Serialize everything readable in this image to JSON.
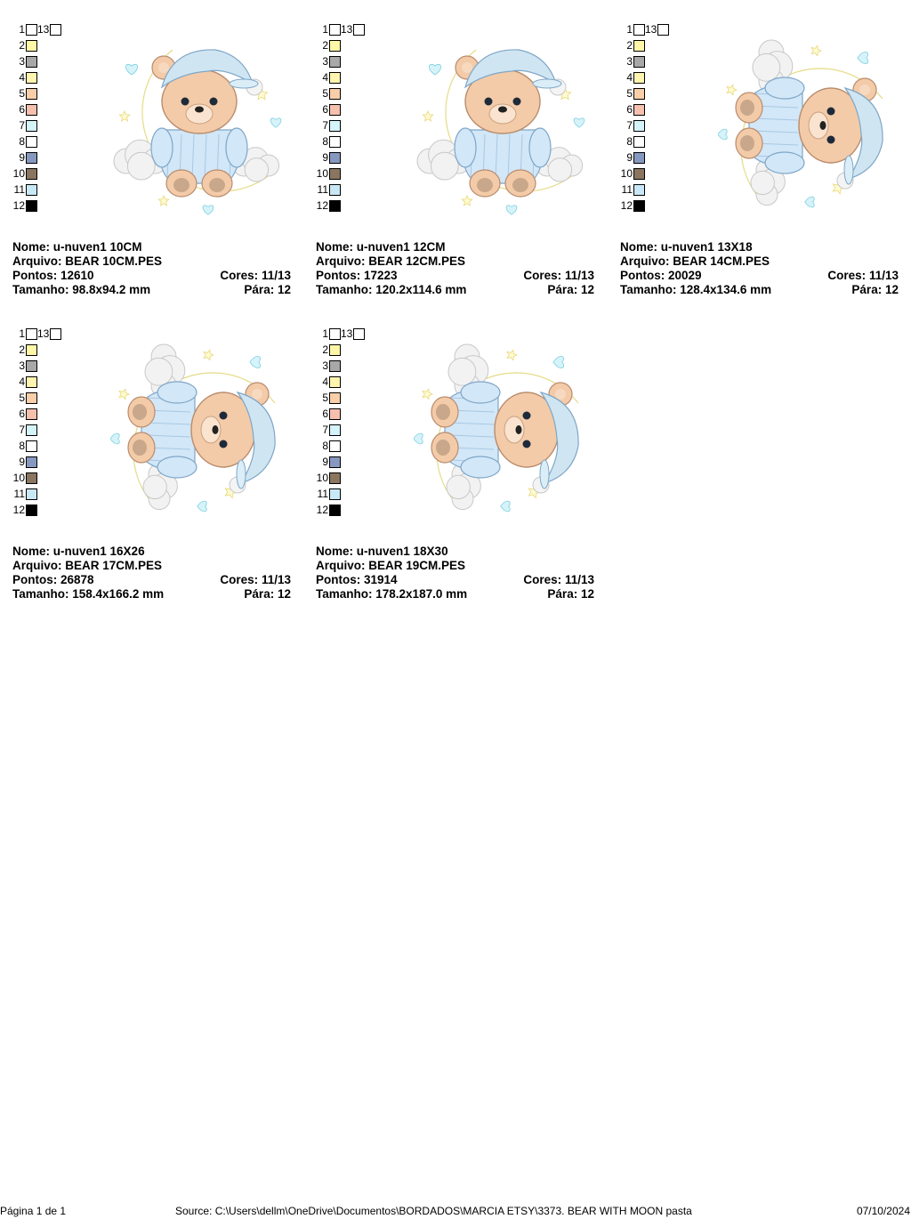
{
  "swatch_colors": [
    "#ffffff",
    "#fff7a8",
    "#a8a8a8",
    "#fff4b0",
    "#f9cfaa",
    "#f6c0ae",
    "#d4f4fa",
    "#ffffff",
    "#8798c0",
    "#8a7560",
    "#c8e8f6",
    "#000000",
    "#ffffff"
  ],
  "swatch_numbers": [
    "1",
    "2",
    "3",
    "4",
    "5",
    "6",
    "7",
    "8",
    "9",
    "10",
    "11",
    "12",
    "13"
  ],
  "designs": [
    {
      "nome_label": "Nome:",
      "nome": "u-nuven1 10CM",
      "arquivo_label": "Arquivo:",
      "arquivo": "BEAR 10CM.PES",
      "pontos_label": "Pontos:",
      "pontos": "12610",
      "cores_label": "Cores:",
      "cores": "11/13",
      "tamanho_label": "Tamanho:",
      "tamanho": "98.8x94.2 mm",
      "para_label": "Pára:",
      "para": "12"
    },
    {
      "nome_label": "Nome:",
      "nome": "u-nuven1 12CM",
      "arquivo_label": "Arquivo:",
      "arquivo": "BEAR 12CM.PES",
      "pontos_label": "Pontos:",
      "pontos": "17223",
      "cores_label": "Cores:",
      "cores": "11/13",
      "tamanho_label": "Tamanho:",
      "tamanho": "120.2x114.6 mm",
      "para_label": "Pára:",
      "para": "12"
    },
    {
      "nome_label": "Nome:",
      "nome": "u-nuven1 13X18",
      "arquivo_label": "Arquivo:",
      "arquivo": "BEAR 14CM.PES",
      "pontos_label": "Pontos:",
      "pontos": "20029",
      "cores_label": "Cores:",
      "cores": "11/13",
      "tamanho_label": "Tamanho:",
      "tamanho": "128.4x134.6 mm",
      "para_label": "Pára:",
      "para": "12"
    },
    {
      "nome_label": "Nome:",
      "nome": "u-nuven1 16X26",
      "arquivo_label": "Arquivo:",
      "arquivo": "BEAR 17CM.PES",
      "pontos_label": "Pontos:",
      "pontos": "26878",
      "cores_label": "Cores:",
      "cores": "11/13",
      "tamanho_label": "Tamanho:",
      "tamanho": "158.4x166.2 mm",
      "para_label": "Pára:",
      "para": "12"
    },
    {
      "nome_label": "Nome:",
      "nome": "u-nuven1 18X30",
      "arquivo_label": "Arquivo:",
      "arquivo": "BEAR 19CM.PES",
      "pontos_label": "Pontos:",
      "pontos": "31914",
      "cores_label": "Cores:",
      "cores": "11/13",
      "tamanho_label": "Tamanho:",
      "tamanho": "178.2x187.0 mm",
      "para_label": "Pára:",
      "para": "12"
    }
  ],
  "footer": {
    "page": "Página 1 de 1",
    "source": "Source: C:\\Users\\dellm\\OneDrive\\Documentos\\BORDADOS\\MARCIA ETSY\\3373. BEAR WITH MOON pasta",
    "date": "07/10/2024"
  }
}
